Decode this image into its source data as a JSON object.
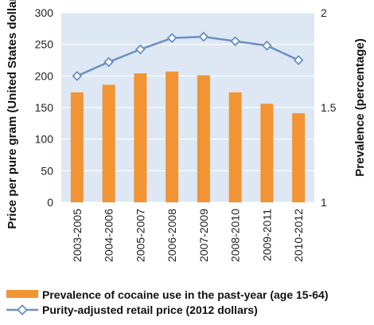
{
  "chart_data": {
    "type": "bar",
    "categories": [
      "2003-2005",
      "2004-2006",
      "2005-2007",
      "2006-2008",
      "2007-2009",
      "2008-2010",
      "2009-2011",
      "2010-2012"
    ],
    "series": [
      {
        "name": "Prevalence of cocaine use in the past-year (age 15-64)",
        "type": "bar",
        "axis": "right",
        "color": "#f29433",
        "values": [
          1.58,
          1.62,
          1.68,
          1.69,
          1.67,
          1.58,
          1.52,
          1.47
        ]
      },
      {
        "name": "Purity-adjusted retail price (2012 dollars)",
        "type": "line",
        "axis": "left",
        "color": "#6b8fc4",
        "values": [
          200,
          222,
          242,
          260,
          262,
          255,
          248,
          225
        ]
      }
    ],
    "ylabel_left": "Price per pure gram (United States dollars)",
    "ylabel_right": "Prevalence (percentage)",
    "ylim_left": [
      0,
      300
    ],
    "ylim_right": [
      1,
      2
    ],
    "yticks_left": [
      "0",
      "50",
      "100",
      "150",
      "200",
      "250",
      "300"
    ],
    "yticks_right": [
      "1",
      "1.5",
      "2"
    ],
    "grid": true,
    "legend_position": "bottom",
    "colors": {
      "plot_bg": "#dde8f4",
      "grid": "#ffffff",
      "bar": "#f29433",
      "line": "#6b8fc4"
    }
  }
}
